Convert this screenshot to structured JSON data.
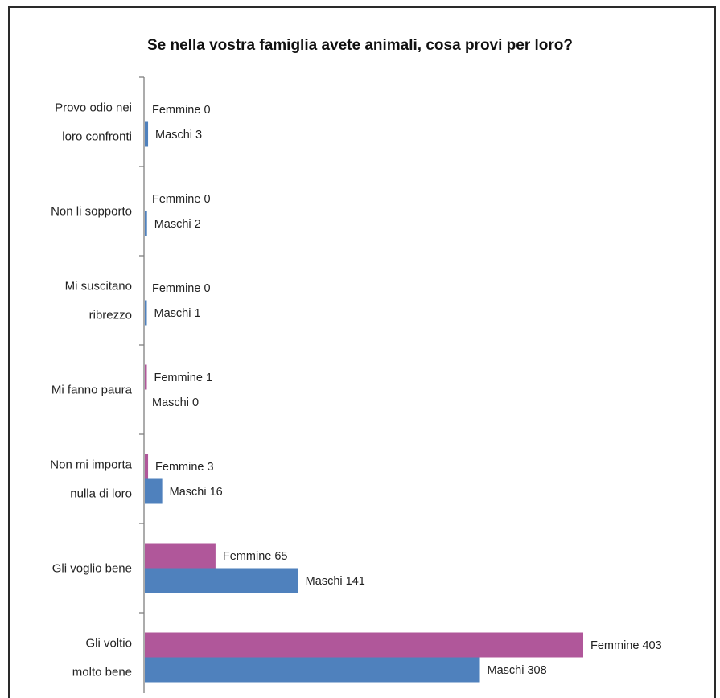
{
  "chart_data": {
    "type": "bar",
    "orientation": "horizontal",
    "title": "Se nella vostra famiglia avete animali, cosa provi per loro?",
    "categories": [
      [
        "Provo odio nei",
        "loro confronti"
      ],
      [
        "Non li sopporto"
      ],
      [
        "Mi suscitano",
        "ribrezzo"
      ],
      [
        "Mi fanno paura"
      ],
      [
        "Non mi importa",
        "nulla di loro"
      ],
      [
        "Gli voglio bene"
      ],
      [
        "Gli voltio",
        "molto bene"
      ]
    ],
    "series": [
      {
        "name": "Femmine",
        "color": "#b0579a",
        "values": [
          0,
          0,
          0,
          1,
          3,
          65,
          403
        ]
      },
      {
        "name": "Maschi",
        "color": "#4f81bd",
        "values": [
          3,
          2,
          1,
          0,
          16,
          141,
          308
        ]
      }
    ],
    "data_labels": [
      [
        "Femmine 0",
        "Maschi 3"
      ],
      [
        "Femmine 0",
        "Maschi 2"
      ],
      [
        "Femmine 0",
        "Maschi 1"
      ],
      [
        "Femmine 1",
        "Maschi 0"
      ],
      [
        "Femmine 3",
        "Maschi 16"
      ],
      [
        "Femmine 65",
        "Maschi 141"
      ],
      [
        "Femmine 403",
        "Maschi 308"
      ]
    ],
    "xlim": [
      0,
      403
    ],
    "grid": false,
    "legend": "none"
  }
}
